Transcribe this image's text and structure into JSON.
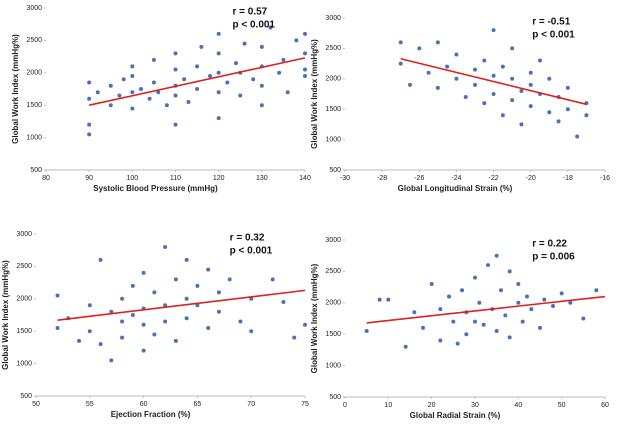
{
  "chart_data": [
    {
      "type": "scatter",
      "x_label": "Systolic Blood Pressure (mmHg)",
      "y_label": "Global Work Index (mmHg%)",
      "annotations": [
        "r = 0.57",
        "p < 0.001"
      ],
      "color": "#4a72b8",
      "xlim": [
        80,
        140
      ],
      "xticks": [
        80,
        90,
        100,
        110,
        120,
        130,
        140
      ],
      "ylim": [
        500,
        3000
      ],
      "yticks": [
        500,
        1000,
        1500,
        2000,
        2500,
        3000
      ],
      "x": [
        90,
        90,
        90,
        90,
        92,
        95,
        95,
        97,
        98,
        100,
        100,
        100,
        100,
        102,
        104,
        105,
        105,
        106,
        108,
        110,
        110,
        110,
        110,
        110,
        112,
        113,
        115,
        115,
        116,
        118,
        120,
        120,
        120,
        120,
        120,
        122,
        124,
        125,
        125,
        126,
        128,
        130,
        130,
        130,
        130,
        132,
        134,
        135,
        136,
        138,
        140,
        140,
        140,
        140
      ],
      "values": [
        1050,
        1200,
        1600,
        1850,
        1700,
        1500,
        1800,
        1650,
        1900,
        1450,
        1700,
        1950,
        2100,
        1750,
        1600,
        1850,
        2200,
        1700,
        1500,
        1200,
        1650,
        1800,
        2050,
        2300,
        1900,
        1550,
        2100,
        1750,
        2400,
        1950,
        1300,
        1700,
        2000,
        2300,
        2600,
        1850,
        2150,
        1650,
        2000,
        2450,
        1900,
        1500,
        1800,
        2100,
        2400,
        2700,
        2000,
        2200,
        1700,
        2500,
        2050,
        2300,
        2600,
        1950
      ],
      "fit": {
        "x": [
          90,
          140
        ],
        "y": [
          1500,
          2230
        ],
        "color": "#e02020"
      }
    },
    {
      "type": "scatter",
      "x_label": "Global Longitudinal Strain (%)",
      "y_label": "Global Work Index (mmHg%)",
      "annotations": [
        "r = -0.51",
        "p < 0.001"
      ],
      "color": "#4a72b8",
      "xlim": [
        -30,
        -16
      ],
      "xticks": [
        -30,
        -28,
        -26,
        -24,
        -22,
        -20,
        -18,
        -16
      ],
      "ylim": [
        500,
        3000
      ],
      "yticks": [
        500,
        1000,
        1500,
        2000,
        2500,
        3000
      ],
      "x": [
        -27,
        -27,
        -26.5,
        -26,
        -25.5,
        -25,
        -25,
        -24.5,
        -24,
        -24,
        -23.5,
        -23,
        -23,
        -22.5,
        -22.5,
        -22,
        -22,
        -22,
        -21.5,
        -21.5,
        -21,
        -21,
        -21,
        -20.5,
        -20.5,
        -20,
        -20,
        -20,
        -19.5,
        -19.5,
        -19,
        -19,
        -18.5,
        -18.5,
        -18,
        -18,
        -17.5,
        -17,
        -17
      ],
      "values": [
        2600,
        2250,
        1900,
        2500,
        2100,
        2600,
        1850,
        2200,
        2000,
        2400,
        1700,
        2150,
        1900,
        2300,
        1600,
        2800,
        2050,
        1750,
        1400,
        2200,
        2000,
        1650,
        2500,
        1800,
        1250,
        2100,
        1550,
        1900,
        1750,
        2300,
        1450,
        2000,
        1700,
        1300,
        1850,
        1500,
        1050,
        1600,
        1400
      ],
      "fit": {
        "x": [
          -27,
          -17
        ],
        "y": [
          2330,
          1580
        ],
        "color": "#e02020"
      }
    },
    {
      "type": "scatter",
      "x_label": "Ejection Fraction (%)",
      "y_label": "Global Work Index (mmHg%)",
      "annotations": [
        "r = 0.32",
        "p < 0.001"
      ],
      "color": "#4a72b8",
      "xlim": [
        50,
        75
      ],
      "xticks": [
        50,
        55,
        60,
        65,
        70,
        75
      ],
      "ylim": [
        500,
        3000
      ],
      "yticks": [
        500,
        1000,
        1500,
        2000,
        2500,
        3000
      ],
      "x": [
        52,
        52,
        53,
        54,
        55,
        55,
        56,
        56,
        57,
        57,
        58,
        58,
        58,
        59,
        59,
        60,
        60,
        60,
        60,
        61,
        61,
        62,
        62,
        62,
        63,
        63,
        64,
        64,
        64,
        65,
        65,
        66,
        66,
        67,
        67,
        68,
        69,
        70,
        70,
        72,
        73,
        74,
        75
      ],
      "values": [
        1550,
        2050,
        1700,
        1350,
        1900,
        1500,
        2600,
        1300,
        1800,
        1050,
        2000,
        1650,
        1400,
        2200,
        1750,
        1200,
        1850,
        2400,
        1600,
        2100,
        1450,
        2800,
        1900,
        1650,
        2300,
        1350,
        2000,
        2600,
        1700,
        1900,
        2200,
        1550,
        2450,
        1800,
        2100,
        2300,
        1650,
        2000,
        1500,
        2300,
        1950,
        1400,
        1600
      ],
      "fit": {
        "x": [
          52,
          75
        ],
        "y": [
          1670,
          2130
        ],
        "color": "#e02020"
      }
    },
    {
      "type": "scatter",
      "x_label": "Global Radial Strain (%)",
      "y_label": "Global Work Index (mmHg%)",
      "annotations": [
        "r = 0.22",
        "p = 0.006"
      ],
      "color": "#4a72b8",
      "xlim": [
        0,
        60
      ],
      "xticks": [
        0,
        10,
        20,
        30,
        40,
        50,
        60
      ],
      "ylim": [
        500,
        3000
      ],
      "yticks": [
        500,
        1000,
        1500,
        2000,
        2500,
        3000
      ],
      "x": [
        5,
        8,
        10,
        14,
        16,
        18,
        20,
        22,
        22,
        24,
        25,
        26,
        27,
        28,
        28,
        30,
        30,
        31,
        32,
        33,
        34,
        35,
        35,
        36,
        37,
        38,
        38,
        40,
        40,
        41,
        42,
        43,
        45,
        46,
        48,
        50,
        52,
        55,
        58
      ],
      "values": [
        1550,
        2050,
        2050,
        1300,
        1850,
        1600,
        2300,
        1400,
        1900,
        2100,
        1700,
        1350,
        2200,
        1850,
        1500,
        2400,
        1700,
        2000,
        1650,
        2600,
        1900,
        2750,
        1550,
        2200,
        1800,
        2500,
        1450,
        2000,
        2300,
        1700,
        2100,
        1900,
        1600,
        2050,
        1950,
        2150,
        2000,
        1750,
        2200
      ],
      "fit": {
        "x": [
          5,
          60
        ],
        "y": [
          1680,
          2100
        ],
        "color": "#e02020"
      }
    }
  ]
}
